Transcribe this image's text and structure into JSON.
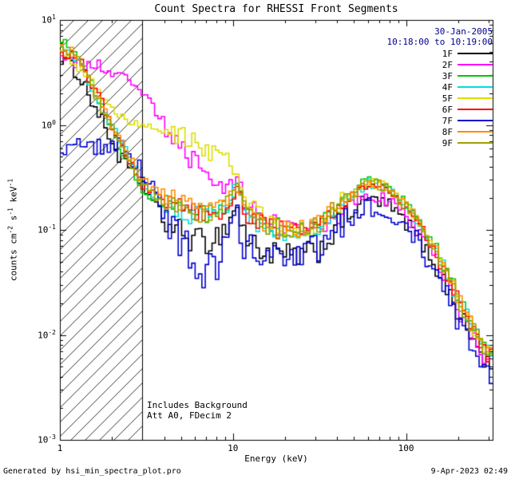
{
  "title": "Count Spectra for RHESSI Front Segments",
  "observation": {
    "date": "30-Jan-2005",
    "time_range": "10:18:00 to 10:19:00"
  },
  "annotations": {
    "line1": "Includes Background",
    "line2": "Att A0, FDecim 2"
  },
  "footer": {
    "generated_by": "Generated by hsi_min_spectra_plot.pro",
    "timestamp": "9-Apr-2023 02:49"
  },
  "chart_data": {
    "type": "line",
    "title": "Count Spectra for RHESSI Front Segments",
    "xlabel": "Energy (keV)",
    "ylabel_parts": [
      {
        "t": "counts cm"
      },
      {
        "sup": "-2"
      },
      {
        "t": " s"
      },
      {
        "sup": "-1"
      },
      {
        "t": " keV"
      },
      {
        "sup": "-1"
      }
    ],
    "xscale": "log",
    "yscale": "log",
    "xlim": [
      1,
      316.23
    ],
    "ylim": [
      0.001,
      10
    ],
    "xticks": [
      1,
      10,
      100
    ],
    "ytick_exponents": [
      1,
      0,
      -1,
      -2,
      -3
    ],
    "hatched_region_keV": [
      1,
      3
    ],
    "legend_position": "top-right-inside",
    "date_color": "#00008b",
    "x_keV": [
      1.0,
      1.3,
      1.7,
      2.2,
      3.0,
      4.0,
      5.5,
      7.0,
      9.0,
      10.5,
      12,
      16,
      22,
      30,
      45,
      60,
      80,
      110,
      150,
      220,
      300
    ],
    "series": [
      {
        "name": "1F",
        "color": "#000000",
        "noise": 0.07,
        "values": [
          4.5,
          3.0,
          1.2,
          0.5,
          0.28,
          0.12,
          0.085,
          0.075,
          0.1,
          0.17,
          0.08,
          0.06,
          0.055,
          0.06,
          0.13,
          0.2,
          0.17,
          0.1,
          0.045,
          0.012,
          0.005
        ]
      },
      {
        "name": "2F",
        "color": "#ff00ff",
        "noise": 0.06,
        "values": [
          4.0,
          3.8,
          3.6,
          3.0,
          2.0,
          1.05,
          0.5,
          0.32,
          0.22,
          0.3,
          0.17,
          0.12,
          0.1,
          0.1,
          0.16,
          0.22,
          0.19,
          0.11,
          0.05,
          0.013,
          0.0055
        ]
      },
      {
        "name": "3F",
        "color": "#00c800",
        "noise": 0.05,
        "values": [
          7.0,
          4.5,
          1.6,
          0.65,
          0.24,
          0.18,
          0.15,
          0.14,
          0.17,
          0.28,
          0.15,
          0.11,
          0.1,
          0.11,
          0.2,
          0.3,
          0.26,
          0.15,
          0.065,
          0.017,
          0.007
        ]
      },
      {
        "name": "4F",
        "color": "#00dddd",
        "noise": 0.05,
        "values": [
          5.5,
          4.0,
          1.5,
          0.75,
          0.28,
          0.17,
          0.14,
          0.13,
          0.16,
          0.26,
          0.14,
          0.1,
          0.095,
          0.105,
          0.19,
          0.28,
          0.24,
          0.14,
          0.06,
          0.016,
          0.0065
        ]
      },
      {
        "name": "5F",
        "color": "#dddd00",
        "noise": 0.05,
        "values": [
          5.0,
          3.5,
          2.0,
          1.2,
          0.95,
          0.85,
          0.75,
          0.58,
          0.48,
          0.33,
          0.2,
          0.12,
          0.1,
          0.11,
          0.2,
          0.29,
          0.25,
          0.145,
          0.062,
          0.016,
          0.0068
        ]
      },
      {
        "name": "6F",
        "color": "#ff0000",
        "noise": 0.05,
        "values": [
          5.2,
          4.2,
          1.8,
          0.7,
          0.27,
          0.19,
          0.16,
          0.14,
          0.16,
          0.27,
          0.14,
          0.105,
          0.095,
          0.1,
          0.19,
          0.28,
          0.24,
          0.14,
          0.06,
          0.015,
          0.0062
        ]
      },
      {
        "name": "7F",
        "color": "#0000cd",
        "noise": 0.1,
        "values": [
          0.55,
          0.6,
          0.65,
          0.6,
          0.4,
          0.14,
          0.065,
          0.038,
          0.06,
          0.12,
          0.07,
          0.065,
          0.06,
          0.065,
          0.12,
          0.17,
          0.15,
          0.09,
          0.04,
          0.01,
          0.004
        ]
      },
      {
        "name": "8F",
        "color": "#ff8c00",
        "noise": 0.05,
        "values": [
          6.0,
          4.3,
          1.7,
          0.75,
          0.29,
          0.22,
          0.17,
          0.15,
          0.17,
          0.28,
          0.15,
          0.11,
          0.1,
          0.11,
          0.2,
          0.29,
          0.25,
          0.145,
          0.063,
          0.016,
          0.0066
        ]
      },
      {
        "name": "9F",
        "color": "#a0a000",
        "noise": 0.05,
        "values": [
          5.5,
          4.0,
          1.6,
          0.68,
          0.26,
          0.18,
          0.15,
          0.135,
          0.16,
          0.26,
          0.14,
          0.105,
          0.095,
          0.105,
          0.19,
          0.285,
          0.245,
          0.142,
          0.061,
          0.0155,
          0.0064
        ]
      }
    ]
  }
}
